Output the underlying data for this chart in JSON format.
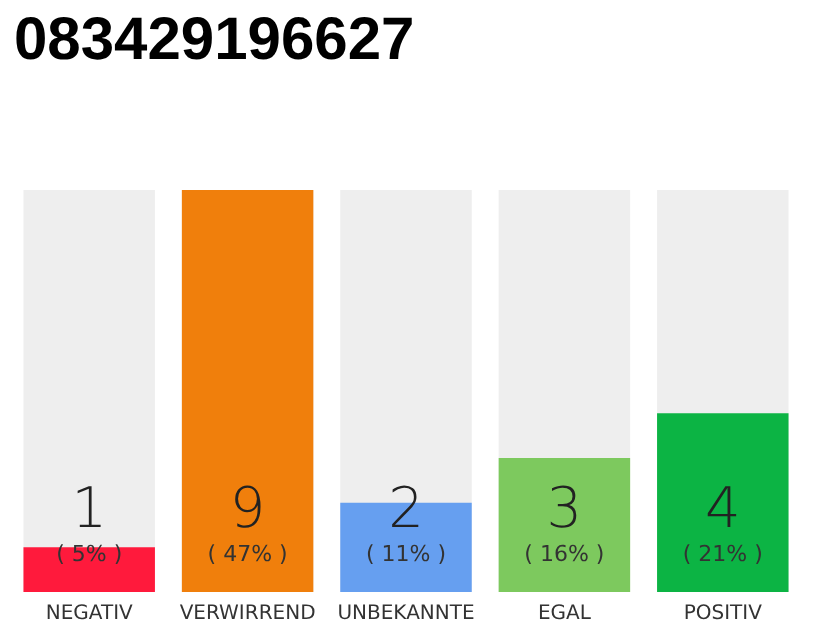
{
  "chart_data": {
    "type": "bar",
    "title": "083429196627",
    "categories": [
      "NEGATIV",
      "VERWIRREND",
      "UNBEKANNTE",
      "EGAL",
      "POSITIV"
    ],
    "values": [
      1,
      9,
      2,
      3,
      4
    ],
    "colors": [
      "#ff1a3c",
      "#f07f0c",
      "#669ff0",
      "#7dc95e",
      "#0cb444"
    ],
    "data_labels": true,
    "annotations": [
      "( 5% )",
      "( 47% )",
      "( 11% )",
      "( 16% )",
      "( 21% )"
    ]
  }
}
